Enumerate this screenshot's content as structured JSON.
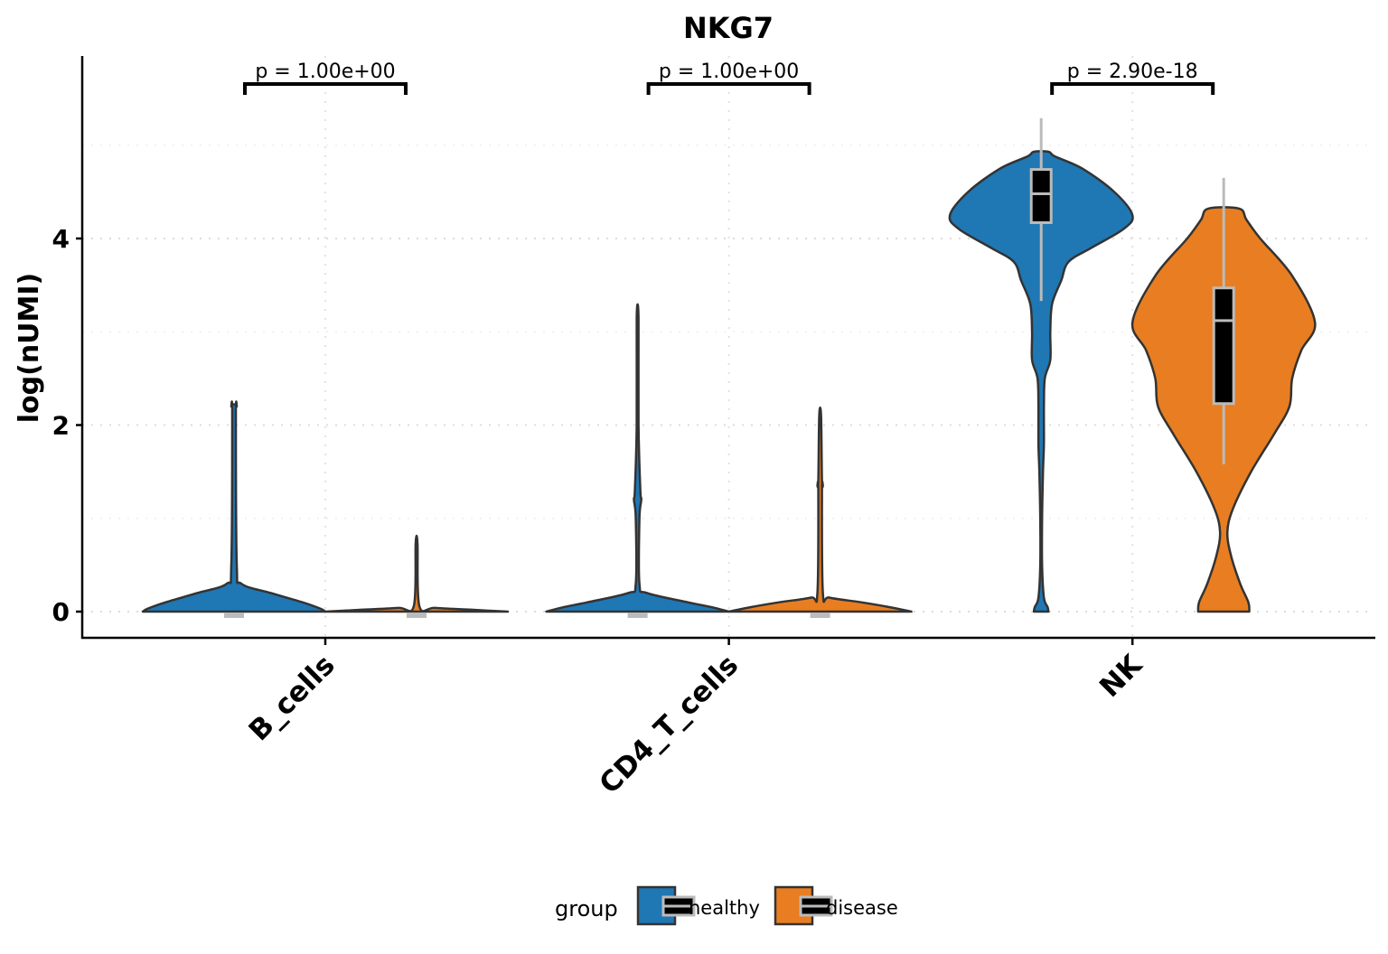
{
  "chart_data": {
    "type": "violin",
    "title": "NKG7",
    "xlabel": "",
    "ylabel": "log(nUMI)",
    "ylim": [
      -0.28,
      5.96
    ],
    "yticks": [
      0,
      2,
      4
    ],
    "ytick_labels": [
      "0",
      "2",
      "4"
    ],
    "minor_grid": [
      1,
      3,
      5
    ],
    "grid": true,
    "categories": [
      "B_cells",
      "CD4_T_cells",
      "NK"
    ],
    "legend": {
      "title": "group",
      "position": "bottom",
      "entries": [
        "healthy",
        "disease"
      ]
    },
    "colors": {
      "healthy": "#1f77b4",
      "disease": "#e87e21"
    },
    "pvalues": [
      "p = 1.00e+00",
      "p = 1.00e+00",
      "p = 2.90e-18"
    ],
    "series": [
      {
        "name": "healthy",
        "violins": [
          {
            "category": "B_cells",
            "profile": [
              [
                0,
                1.0
              ],
              [
                0.03,
                0.95
              ],
              [
                0.1,
                0.75
              ],
              [
                0.2,
                0.4
              ],
              [
                0.3,
                0.08
              ],
              [
                0.5,
                0.03
              ],
              [
                2.1,
                0.02
              ],
              [
                2.2,
                0.03
              ],
              [
                2.22,
                0.02
              ]
            ],
            "box": {
              "low": 0,
              "q1": 0,
              "median": 0,
              "q3": 0,
              "high": 0
            }
          },
          {
            "category": "CD4_T_cells",
            "profile": [
              [
                0,
                1.0
              ],
              [
                0.05,
                0.8
              ],
              [
                0.1,
                0.55
              ],
              [
                0.2,
                0.1
              ],
              [
                0.3,
                0.02
              ],
              [
                1.0,
                0.02
              ],
              [
                1.2,
                0.04
              ],
              [
                1.3,
                0.03
              ],
              [
                2.0,
                0.01
              ],
              [
                3.15,
                0.01
              ]
            ],
            "box": {
              "low": 0,
              "q1": 0,
              "median": 0,
              "q3": 0,
              "high": 0
            }
          },
          {
            "category": "NK",
            "profile": [
              [
                0,
                0.08
              ],
              [
                0.05,
                0.07
              ],
              [
                0.15,
                0.03
              ],
              [
                0.5,
                0.01
              ],
              [
                1.0,
                0.01
              ],
              [
                1.5,
                0.02
              ],
              [
                1.8,
                0.03
              ],
              [
                2.2,
                0.03
              ],
              [
                2.5,
                0.04
              ],
              [
                2.7,
                0.1
              ],
              [
                3.0,
                0.1
              ],
              [
                3.3,
                0.12
              ],
              [
                3.55,
                0.22
              ],
              [
                3.75,
                0.3
              ],
              [
                3.9,
                0.55
              ],
              [
                4.1,
                0.9
              ],
              [
                4.25,
                1.0
              ],
              [
                4.5,
                0.8
              ],
              [
                4.75,
                0.45
              ],
              [
                4.88,
                0.15
              ],
              [
                4.93,
                0.08
              ]
            ],
            "box": {
              "low": 3.33,
              "q1": 4.17,
              "median": 4.48,
              "q3": 4.74,
              "high": 5.29
            }
          }
        ]
      },
      {
        "name": "disease",
        "violins": [
          {
            "category": "B_cells",
            "profile": [
              [
                0,
                1.0
              ],
              [
                0.02,
                0.6
              ],
              [
                0.04,
                0.2
              ],
              [
                0.06,
                0.03
              ],
              [
                0.73,
                0.01
              ]
            ],
            "box": {
              "low": 0,
              "q1": 0,
              "median": 0,
              "q3": 0,
              "high": 0
            }
          },
          {
            "category": "CD4_T_cells",
            "profile": [
              [
                0,
                1.0
              ],
              [
                0.05,
                0.75
              ],
              [
                0.1,
                0.45
              ],
              [
                0.15,
                0.1
              ],
              [
                0.2,
                0.03
              ],
              [
                1.3,
                0.02
              ],
              [
                1.35,
                0.03
              ],
              [
                1.4,
                0.02
              ],
              [
                2.1,
                0.01
              ]
            ],
            "box": {
              "low": 0,
              "q1": 0,
              "median": 0,
              "q3": 0,
              "high": 0
            }
          },
          {
            "category": "NK",
            "profile": [
              [
                0,
                0.28
              ],
              [
                0.1,
                0.27
              ],
              [
                0.3,
                0.18
              ],
              [
                0.6,
                0.08
              ],
              [
                0.85,
                0.04
              ],
              [
                1.1,
                0.1
              ],
              [
                1.5,
                0.3
              ],
              [
                1.9,
                0.55
              ],
              [
                2.2,
                0.72
              ],
              [
                2.5,
                0.75
              ],
              [
                2.8,
                0.85
              ],
              [
                3.1,
                1.0
              ],
              [
                3.6,
                0.75
              ],
              [
                4.0,
                0.4
              ],
              [
                4.2,
                0.25
              ],
              [
                4.32,
                0.17
              ]
            ],
            "box": {
              "low": 1.58,
              "q1": 2.23,
              "median": 3.12,
              "q3": 3.47,
              "high": 4.65
            }
          }
        ]
      }
    ]
  }
}
